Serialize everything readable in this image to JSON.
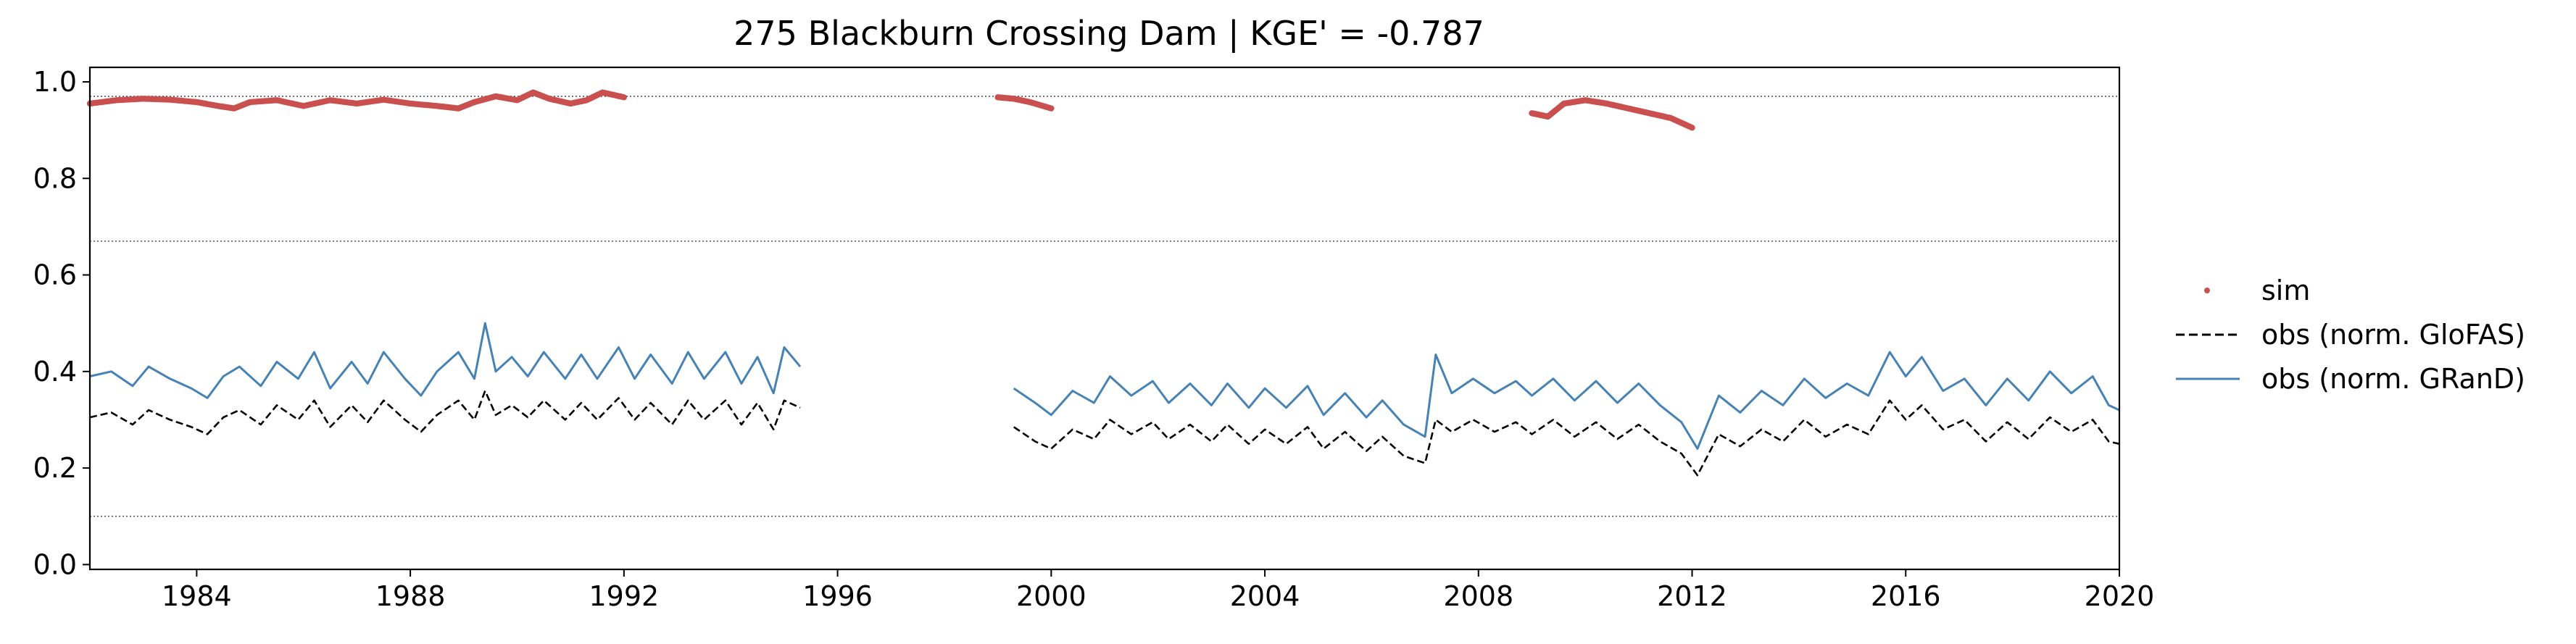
{
  "chart_data": {
    "type": "line",
    "title": "275  Blackburn Crossing Dam | KGE' = -0.787",
    "xlabel": "",
    "ylabel": "",
    "xlim": [
      1982.0,
      2020.0
    ],
    "ylim": [
      -0.01,
      1.03
    ],
    "x_ticks": [
      1984,
      1988,
      1992,
      1996,
      2000,
      2004,
      2008,
      2012,
      2016,
      2020
    ],
    "x_tick_labels": [
      "1984",
      "1988",
      "1992",
      "1996",
      "2000",
      "2004",
      "2008",
      "2012",
      "2016",
      "2020"
    ],
    "y_ticks": [
      0.0,
      0.2,
      0.4,
      0.6,
      0.8,
      1.0
    ],
    "y_tick_labels": [
      "0.0",
      "0.2",
      "0.4",
      "0.6",
      "0.8",
      "1.0"
    ],
    "reference_lines": [
      0.97,
      0.67,
      0.1
    ],
    "grid": false,
    "legend_position": "right",
    "colors": {
      "sim": "#c9504f",
      "obs_glofas": "#000000",
      "obs_grand": "#4682b4",
      "reference": "#555555"
    },
    "series": [
      {
        "name": "sim",
        "style": "points",
        "segments": [
          {
            "x": [
              1982.0,
              1982.5,
              1983.0,
              1983.5,
              1984.0,
              1984.4,
              1984.7,
              1985.0,
              1985.5,
              1986.0,
              1986.5,
              1987.0,
              1987.5,
              1988.0,
              1988.5,
              1988.9,
              1989.2,
              1989.6,
              1990.0,
              1990.3,
              1990.6,
              1991.0,
              1991.3,
              1991.6,
              1992.0
            ],
            "y": [
              0.955,
              0.962,
              0.965,
              0.963,
              0.958,
              0.95,
              0.945,
              0.958,
              0.962,
              0.95,
              0.962,
              0.955,
              0.963,
              0.955,
              0.95,
              0.945,
              0.958,
              0.97,
              0.962,
              0.978,
              0.965,
              0.955,
              0.962,
              0.978,
              0.968
            ]
          },
          {
            "x": [
              1999.0,
              1999.3,
              1999.6,
              2000.0
            ],
            "y": [
              0.968,
              0.965,
              0.958,
              0.945
            ]
          },
          {
            "x": [
              2009.0,
              2009.3,
              2009.6,
              2010.0,
              2010.4,
              2010.8,
              2011.2,
              2011.6,
              2012.0
            ],
            "y": [
              0.935,
              0.928,
              0.955,
              0.962,
              0.955,
              0.945,
              0.935,
              0.925,
              0.905
            ]
          }
        ]
      },
      {
        "name": "obs (norm. GloFAS)",
        "style": "dashed",
        "segments": [
          {
            "x": [
              1982.0,
              1982.4,
              1982.8,
              1983.1,
              1983.5,
              1983.9,
              1984.2,
              1984.5,
              1984.8,
              1985.2,
              1985.5,
              1985.9,
              1986.2,
              1986.5,
              1986.9,
              1987.2,
              1987.5,
              1987.9,
              1988.2,
              1988.5,
              1988.9,
              1989.2,
              1989.4,
              1989.6,
              1989.9,
              1990.2,
              1990.5,
              1990.9,
              1991.2,
              1991.5,
              1991.9,
              1992.2,
              1992.5,
              1992.9,
              1993.2,
              1993.5,
              1993.9,
              1994.2,
              1994.5,
              1994.8,
              1995.0,
              1995.3
            ],
            "y": [
              0.305,
              0.315,
              0.29,
              0.32,
              0.3,
              0.285,
              0.27,
              0.305,
              0.32,
              0.29,
              0.33,
              0.3,
              0.34,
              0.285,
              0.33,
              0.295,
              0.34,
              0.3,
              0.275,
              0.31,
              0.34,
              0.3,
              0.36,
              0.31,
              0.33,
              0.305,
              0.34,
              0.3,
              0.335,
              0.3,
              0.345,
              0.3,
              0.335,
              0.29,
              0.34,
              0.3,
              0.34,
              0.29,
              0.335,
              0.28,
              0.34,
              0.325
            ]
          },
          {
            "x": [
              1999.3,
              1999.7,
              2000.0,
              2000.4,
              2000.8,
              2001.1,
              2001.5,
              2001.9,
              2002.2,
              2002.6,
              2003.0,
              2003.3,
              2003.7,
              2004.0,
              2004.4,
              2004.8,
              2005.1,
              2005.5,
              2005.9,
              2006.2,
              2006.6,
              2007.0,
              2007.2,
              2007.5,
              2007.9,
              2008.3,
              2008.7,
              2009.0,
              2009.4,
              2009.8,
              2010.2,
              2010.6,
              2011.0,
              2011.4,
              2011.8,
              2012.1,
              2012.5,
              2012.9,
              2013.3,
              2013.7,
              2014.1,
              2014.5,
              2014.9,
              2015.3,
              2015.7,
              2016.0,
              2016.3,
              2016.7,
              2017.1,
              2017.5,
              2017.9,
              2018.3,
              2018.7,
              2019.1,
              2019.5,
              2019.8,
              2020.0
            ],
            "y": [
              0.285,
              0.255,
              0.24,
              0.28,
              0.26,
              0.3,
              0.27,
              0.295,
              0.26,
              0.29,
              0.255,
              0.29,
              0.25,
              0.28,
              0.25,
              0.285,
              0.24,
              0.275,
              0.235,
              0.265,
              0.225,
              0.21,
              0.3,
              0.275,
              0.3,
              0.275,
              0.295,
              0.27,
              0.3,
              0.265,
              0.295,
              0.26,
              0.29,
              0.255,
              0.23,
              0.185,
              0.27,
              0.245,
              0.28,
              0.255,
              0.3,
              0.265,
              0.29,
              0.27,
              0.34,
              0.3,
              0.33,
              0.28,
              0.3,
              0.255,
              0.295,
              0.26,
              0.305,
              0.275,
              0.3,
              0.255,
              0.25
            ]
          }
        ]
      },
      {
        "name": "obs (norm. GRanD)",
        "style": "solid",
        "segments": [
          {
            "x": [
              1982.0,
              1982.4,
              1982.8,
              1983.1,
              1983.5,
              1983.9,
              1984.2,
              1984.5,
              1984.8,
              1985.2,
              1985.5,
              1985.9,
              1986.2,
              1986.5,
              1986.9,
              1987.2,
              1987.5,
              1987.9,
              1988.2,
              1988.5,
              1988.9,
              1989.2,
              1989.4,
              1989.6,
              1989.9,
              1990.2,
              1990.5,
              1990.9,
              1991.2,
              1991.5,
              1991.9,
              1992.2,
              1992.5,
              1992.9,
              1993.2,
              1993.5,
              1993.9,
              1994.2,
              1994.5,
              1994.8,
              1995.0,
              1995.3
            ],
            "y": [
              0.39,
              0.4,
              0.37,
              0.41,
              0.385,
              0.365,
              0.345,
              0.39,
              0.41,
              0.37,
              0.42,
              0.385,
              0.44,
              0.365,
              0.42,
              0.375,
              0.44,
              0.385,
              0.35,
              0.4,
              0.44,
              0.385,
              0.5,
              0.4,
              0.43,
              0.39,
              0.44,
              0.385,
              0.435,
              0.385,
              0.45,
              0.385,
              0.435,
              0.375,
              0.44,
              0.385,
              0.44,
              0.375,
              0.43,
              0.355,
              0.45,
              0.41
            ]
          },
          {
            "x": [
              1999.3,
              1999.7,
              2000.0,
              2000.4,
              2000.8,
              2001.1,
              2001.5,
              2001.9,
              2002.2,
              2002.6,
              2003.0,
              2003.3,
              2003.7,
              2004.0,
              2004.4,
              2004.8,
              2005.1,
              2005.5,
              2005.9,
              2006.2,
              2006.6,
              2007.0,
              2007.2,
              2007.5,
              2007.9,
              2008.3,
              2008.7,
              2009.0,
              2009.4,
              2009.8,
              2010.2,
              2010.6,
              2011.0,
              2011.4,
              2011.8,
              2012.1,
              2012.5,
              2012.9,
              2013.3,
              2013.7,
              2014.1,
              2014.5,
              2014.9,
              2015.3,
              2015.7,
              2016.0,
              2016.3,
              2016.7,
              2017.1,
              2017.5,
              2017.9,
              2018.3,
              2018.7,
              2019.1,
              2019.5,
              2019.8,
              2020.0
            ],
            "y": [
              0.365,
              0.335,
              0.31,
              0.36,
              0.335,
              0.39,
              0.35,
              0.38,
              0.335,
              0.375,
              0.33,
              0.375,
              0.325,
              0.365,
              0.325,
              0.37,
              0.31,
              0.355,
              0.305,
              0.34,
              0.29,
              0.265,
              0.435,
              0.355,
              0.385,
              0.355,
              0.38,
              0.35,
              0.385,
              0.34,
              0.38,
              0.335,
              0.375,
              0.33,
              0.295,
              0.24,
              0.35,
              0.315,
              0.36,
              0.33,
              0.385,
              0.345,
              0.375,
              0.35,
              0.44,
              0.39,
              0.43,
              0.36,
              0.385,
              0.33,
              0.385,
              0.34,
              0.4,
              0.355,
              0.39,
              0.33,
              0.32
            ]
          }
        ]
      }
    ]
  }
}
